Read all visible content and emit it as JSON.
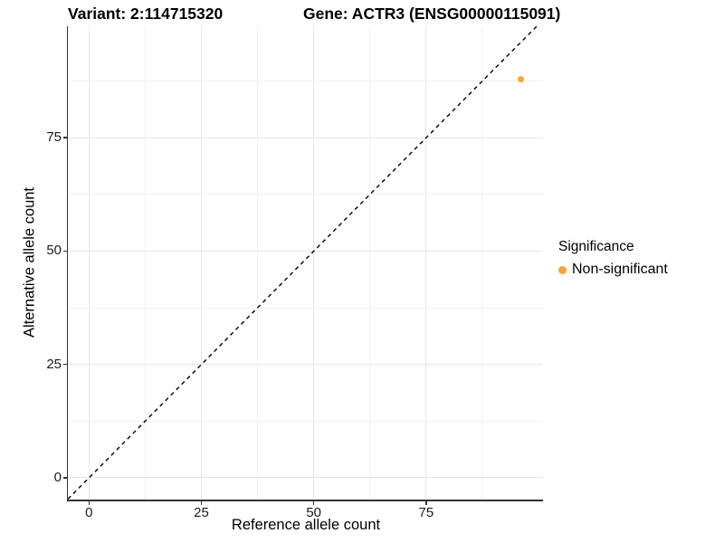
{
  "chart_data": {
    "type": "scatter",
    "title_left": "Variant: 2:114715320",
    "title_right": "Gene: ACTR3 (ENSG00000115091)",
    "xlabel": "Reference allele count",
    "ylabel": "Alternative allele count",
    "xlim": [
      -4.7,
      101.0
    ],
    "ylim": [
      -4.8,
      99.6
    ],
    "x_ticks": [
      0,
      25,
      50,
      75
    ],
    "y_ticks": [
      0,
      25,
      50,
      75
    ],
    "x_minor_ticks": [
      12.5,
      37.5,
      62.5,
      87.5
    ],
    "y_minor_ticks": [
      12.5,
      37.5,
      62.5,
      87.5
    ],
    "grid": true,
    "identity_line": {
      "style": "dashed",
      "slope": 1,
      "intercept": 0,
      "color": "#000000"
    },
    "series": [
      {
        "name": "Non-significant",
        "color": "#FBA43C",
        "points": [
          [
            96,
            88
          ]
        ]
      }
    ],
    "legend": {
      "title": "Significance",
      "position": "right",
      "items": [
        {
          "label": "Non-significant",
          "color": "#FBA43C"
        }
      ]
    },
    "colors": {
      "grid_major": "#e6e6e6",
      "grid_minor": "#f1f1f1",
      "axis_line": "#333333"
    }
  }
}
